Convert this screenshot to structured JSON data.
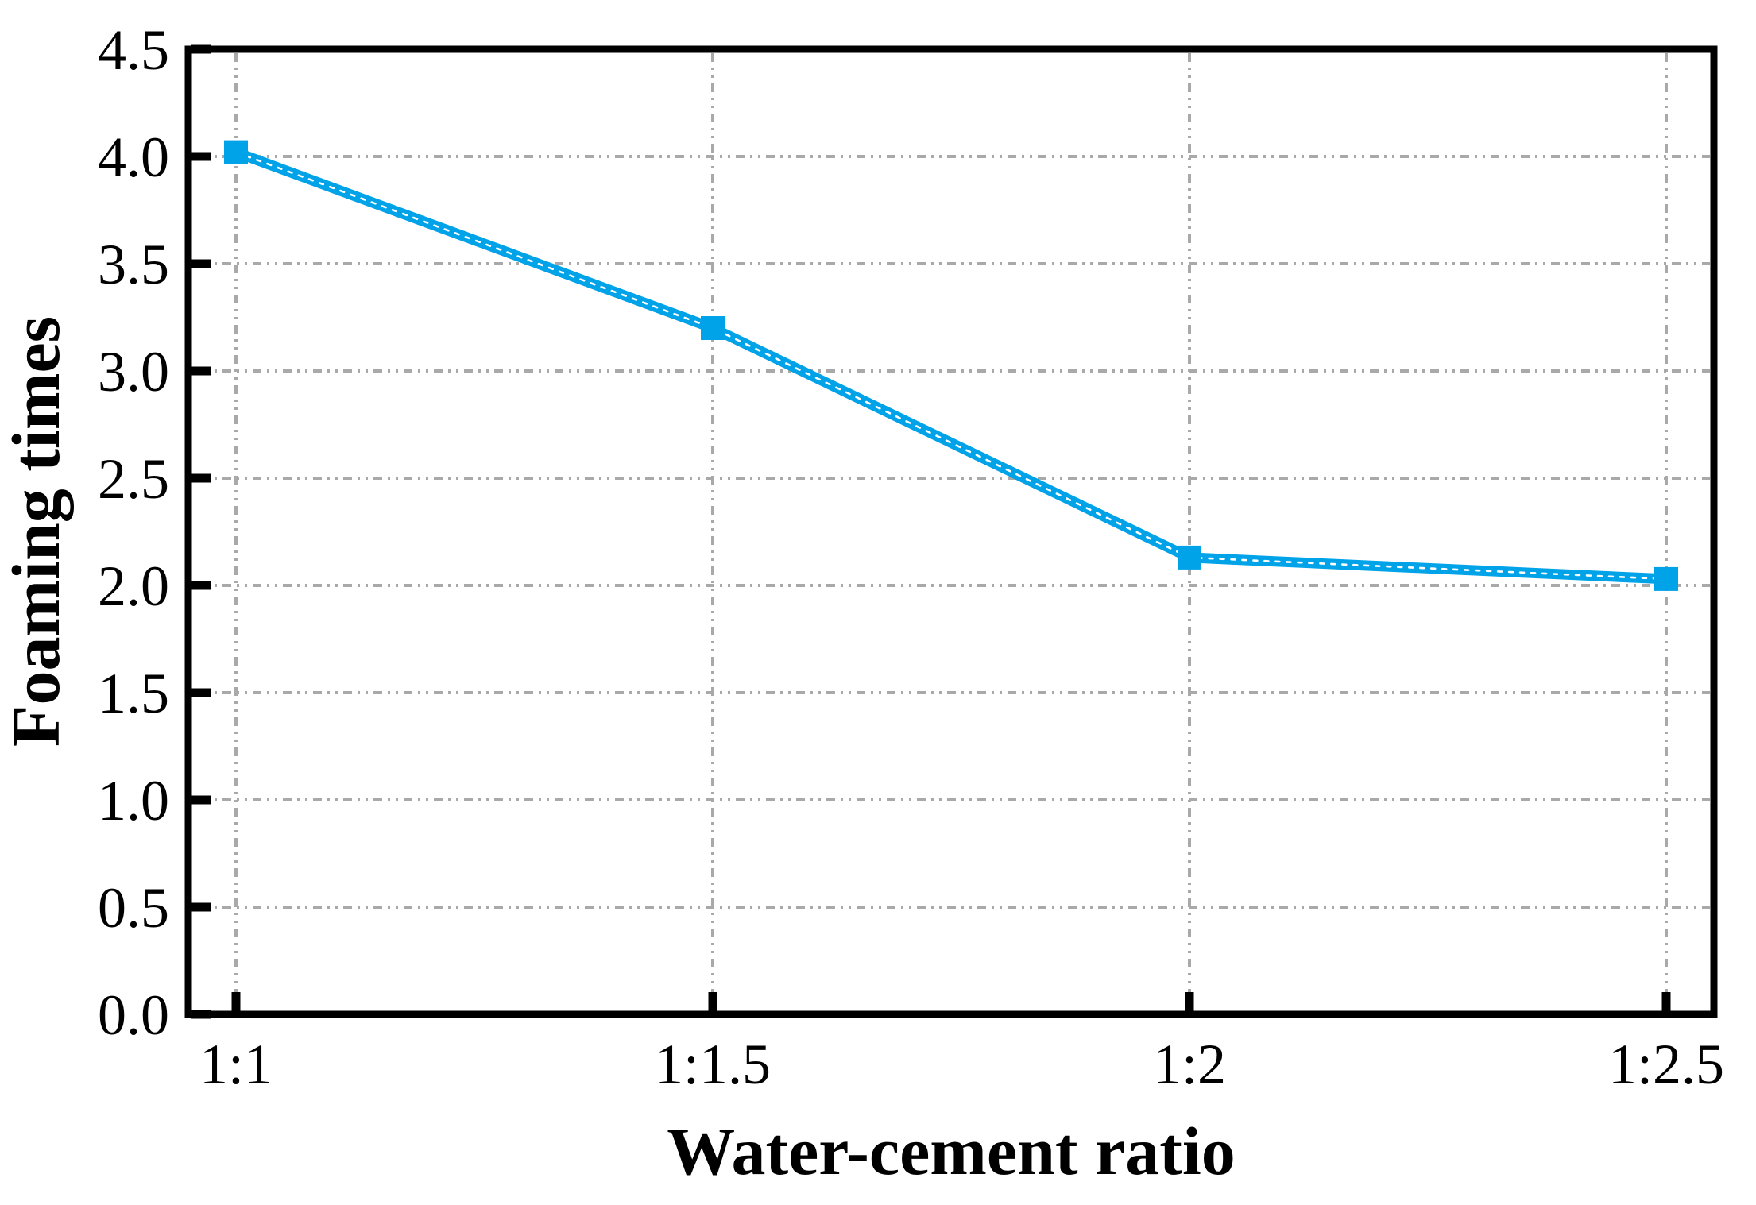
{
  "chart_data": {
    "type": "line",
    "title": "",
    "xlabel": "Water-cement ratio",
    "ylabel": "Foaming times",
    "categories": [
      "1:1",
      "1:1.5",
      "1:2",
      "1:2.5"
    ],
    "series": [
      {
        "name": "Foaming times",
        "values": [
          4.02,
          3.2,
          2.13,
          2.03
        ]
      }
    ],
    "ylim": [
      0,
      4.5
    ],
    "y_tick_step": 0.5,
    "y_tick_labels": [
      "0.0",
      "0.5",
      "1.0",
      "1.5",
      "2.0",
      "2.5",
      "3.0",
      "3.5",
      "4.0",
      "4.5"
    ],
    "grid": true,
    "grid_style": "dash-dot-dot",
    "legend_position": "none",
    "marker": "filled-square",
    "colors": {
      "line": "#00A2E8",
      "line_center_dash": "#FFFFFF",
      "grid": "#A9A9A9",
      "axis": "#000000",
      "background": "#FFFFFF"
    }
  }
}
